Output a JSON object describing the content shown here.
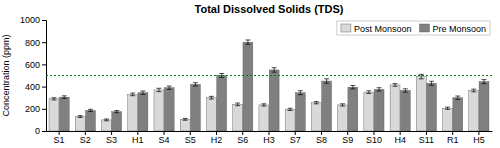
{
  "chart_data": {
    "type": "bar",
    "title": "Total Dissolved Solids (TDS)",
    "ylabel": "Concentration (ppm)",
    "categories": [
      "S1",
      "S2",
      "S3",
      "H1",
      "S4",
      "S5",
      "H2",
      "S6",
      "H3",
      "S7",
      "S8",
      "S9",
      "S10",
      "H4",
      "S11",
      "R1",
      "H5"
    ],
    "series": [
      {
        "name": "Post Monsoon",
        "color": "#d9d9d9",
        "values": [
          290,
          130,
          100,
          330,
          370,
          105,
          300,
          240,
          235,
          195,
          255,
          235,
          350,
          415,
          490,
          205,
          365
        ],
        "errors": [
          10,
          8,
          8,
          12,
          15,
          8,
          12,
          12,
          10,
          10,
          10,
          10,
          12,
          12,
          20,
          10,
          12
        ]
      },
      {
        "name": "Pre Monsoon",
        "color": "#808080",
        "values": [
          305,
          185,
          175,
          345,
          390,
          420,
          500,
          800,
          550,
          345,
          450,
          395,
          375,
          365,
          430,
          300,
          445
        ],
        "errors": [
          12,
          10,
          10,
          15,
          15,
          15,
          18,
          20,
          20,
          18,
          20,
          15,
          15,
          15,
          18,
          15,
          18
        ]
      }
    ],
    "reference_lines": [
      {
        "y": 500,
        "color": "#008000",
        "line_style": "dotted"
      }
    ],
    "ylim": [
      0,
      1000
    ],
    "yticks": [
      0,
      200,
      400,
      600,
      800,
      1000
    ],
    "legend": "upper right",
    "grid": false
  }
}
